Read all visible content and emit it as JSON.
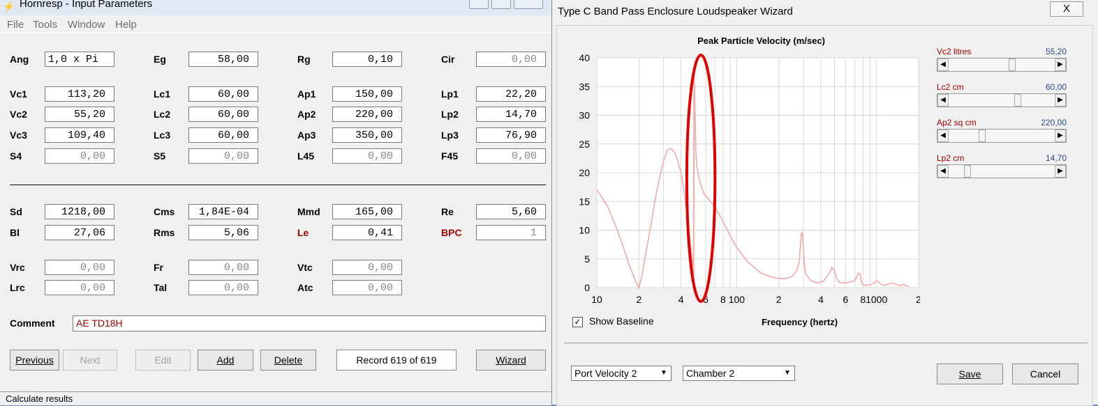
{
  "main": {
    "title": "Hornresp - Input Parameters",
    "menu": [
      "File",
      "Tools",
      "Window",
      "Help"
    ],
    "params": {
      "ang": {
        "label": "Ang",
        "value": "1,0 x Pi"
      },
      "eg": {
        "label": "Eg",
        "value": "58,00"
      },
      "rg": {
        "label": "Rg",
        "value": "0,10"
      },
      "cir": {
        "label": "Cir",
        "value": "0,00"
      },
      "vc1": {
        "label": "Vc1",
        "value": "113,20"
      },
      "lc1": {
        "label": "Lc1",
        "value": "60,00"
      },
      "ap1": {
        "label": "Ap1",
        "value": "150,00"
      },
      "lp1": {
        "label": "Lp1",
        "value": "22,20"
      },
      "vc2": {
        "label": "Vc2",
        "value": "55,20"
      },
      "lc2": {
        "label": "Lc2",
        "value": "60,00"
      },
      "ap2": {
        "label": "Ap2",
        "value": "220,00"
      },
      "lp2": {
        "label": "Lp2",
        "value": "14,70"
      },
      "vc3": {
        "label": "Vc3",
        "value": "109,40"
      },
      "lc3": {
        "label": "Lc3",
        "value": "60,00"
      },
      "ap3": {
        "label": "Ap3",
        "value": "350,00"
      },
      "lp3": {
        "label": "Lp3",
        "value": "76,90"
      },
      "s4": {
        "label": "S4",
        "value": "0,00"
      },
      "s5": {
        "label": "S5",
        "value": "0,00"
      },
      "l45": {
        "label": "L45",
        "value": "0,00"
      },
      "f45": {
        "label": "F45",
        "value": "0,00"
      },
      "sd": {
        "label": "Sd",
        "value": "1218,00"
      },
      "cms": {
        "label": "Cms",
        "value": "1,84E-04"
      },
      "mmd": {
        "label": "Mmd",
        "value": "165,00"
      },
      "re": {
        "label": "Re",
        "value": "5,60"
      },
      "bl": {
        "label": "Bl",
        "value": "27,06"
      },
      "rms": {
        "label": "Rms",
        "value": "5,06"
      },
      "le": {
        "label": "Le",
        "value": "0,41"
      },
      "bpc": {
        "label": "BPC",
        "value": "1"
      },
      "vrc": {
        "label": "Vrc",
        "value": "0,00"
      },
      "fr": {
        "label": "Fr",
        "value": "0,00"
      },
      "vtc": {
        "label": "Vtc",
        "value": "0,00"
      },
      "lrc": {
        "label": "Lrc",
        "value": "0,00"
      },
      "tal": {
        "label": "Tal",
        "value": "0,00"
      },
      "atc": {
        "label": "Atc",
        "value": "0,00"
      }
    },
    "comment_label": "Comment",
    "comment_value": "AE TD18H",
    "buttons": {
      "previous": "Previous",
      "next": "Next",
      "edit": "Edit",
      "add": "Add",
      "delete": "Delete",
      "record": "Record 619 of 619",
      "wizard": "Wizard"
    },
    "status": "Calculate results"
  },
  "wizard": {
    "title": "Type C Band Pass Enclosure Loudspeaker Wizard",
    "close": "X",
    "show_baseline_label": "Show Baseline",
    "show_baseline_checked": true,
    "dropdown1": "Port Velocity 2",
    "dropdown2": "Chamber 2",
    "save": "Save",
    "cancel": "Cancel",
    "sliders": [
      {
        "label": "Vc2  litres",
        "value": "55,20",
        "fraction": 0.6
      },
      {
        "label": "Lc2  cm",
        "value": "60,00",
        "fraction": 0.65
      },
      {
        "label": "Ap2  sq cm",
        "value": "220,00",
        "fraction": 0.3
      },
      {
        "label": "Lp2  cm",
        "value": "14,70",
        "fraction": 0.15
      }
    ]
  },
  "chart_data": {
    "type": "line",
    "title": "Peak Particle Velocity (m/sec)",
    "xlabel": "Frequency (hertz)",
    "ylabel": "",
    "x_scale": "log",
    "xlim": [
      10,
      2000
    ],
    "ylim": [
      0,
      40
    ],
    "y_ticks": [
      "0",
      "5",
      "10",
      "15",
      "20",
      "25",
      "30",
      "35",
      "40"
    ],
    "x_tick_labels": [
      {
        "x": 10,
        "label": "10"
      },
      {
        "x": 20,
        "label": "2"
      },
      {
        "x": 40,
        "label": "4"
      },
      {
        "x": 60,
        "label": "6"
      },
      {
        "x": 80,
        "label": "8"
      },
      {
        "x": 100,
        "label": "100"
      },
      {
        "x": 200,
        "label": "2"
      },
      {
        "x": 400,
        "label": "4"
      },
      {
        "x": 600,
        "label": "6"
      },
      {
        "x": 800,
        "label": "8"
      },
      {
        "x": 1000,
        "label": "1000"
      },
      {
        "x": 2000,
        "label": "2"
      }
    ],
    "grid": true,
    "color": "#f4a8a8",
    "highlight_color": "#e00000",
    "highlight_range_hz": [
      44,
      70
    ],
    "series": [
      {
        "x": [
          10,
          11,
          12,
          13,
          14,
          15,
          16,
          17,
          18,
          19,
          20,
          21,
          22,
          24,
          26,
          28,
          30,
          32,
          34,
          36,
          38,
          40,
          42,
          44,
          46,
          48,
          49,
          49.5,
          50,
          50.5,
          51,
          52,
          54,
          56,
          58,
          60,
          65,
          70,
          80,
          90,
          100,
          120,
          150,
          180,
          200,
          230,
          250,
          270,
          280,
          290,
          295,
          300,
          305,
          310,
          320,
          340,
          380,
          420,
          460,
          480,
          500,
          520,
          540,
          560,
          600,
          650,
          700,
          740,
          760,
          780,
          800,
          850,
          900,
          950,
          1000,
          1050,
          1100,
          1150,
          1200,
          1300,
          1400,
          1500,
          1550,
          1600,
          1700
        ],
        "y": [
          17,
          15.5,
          14,
          12,
          10,
          8,
          6,
          4,
          2.5,
          1,
          0,
          2,
          5,
          10,
          15,
          19,
          22,
          24,
          24.2,
          23.5,
          22,
          20,
          17,
          13,
          9,
          5,
          2,
          37.5,
          35,
          30,
          24,
          21,
          19,
          17.5,
          16.5,
          16,
          15,
          14,
          11.5,
          9,
          7,
          4.5,
          2.5,
          1.8,
          1.6,
          1.6,
          2,
          3,
          4.5,
          9.5,
          9.5,
          7,
          4,
          2.5,
          2,
          1.2,
          0.8,
          1.2,
          2.5,
          3.5,
          3,
          1.5,
          1,
          0.8,
          0.8,
          1,
          1.2,
          2.5,
          2.5,
          1,
          0.5,
          0.4,
          0.5,
          0.8,
          1.2,
          0.8,
          0.5,
          0.4,
          0.6,
          0.8,
          0.5,
          0.3,
          0.6,
          0.4,
          0.2
        ]
      }
    ]
  }
}
